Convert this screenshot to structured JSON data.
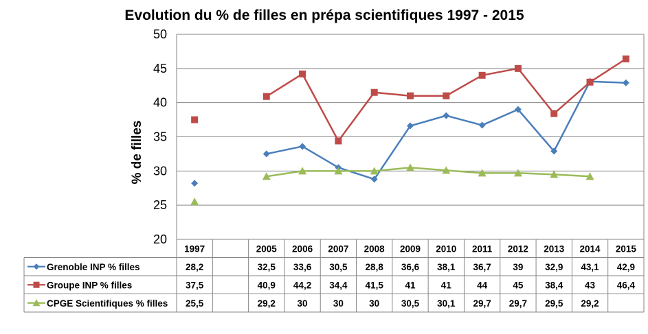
{
  "chart_data": {
    "type": "line",
    "title": "Evolution du % de filles en prépa scientifiques 1997 - 2015",
    "ylabel": "% de filles",
    "xlabel": "",
    "ylim": [
      20,
      50
    ],
    "yticks": [
      20,
      25,
      30,
      35,
      40,
      45,
      50
    ],
    "grid": true,
    "legend": "table-rows",
    "categories": [
      "1997",
      "",
      "2005",
      "2006",
      "2007",
      "2008",
      "2009",
      "2010",
      "2011",
      "2012",
      "2013",
      "2014",
      "2015"
    ],
    "series": [
      {
        "name": "Grenoble INP % filles",
        "color": "#4A7EBB",
        "marker": "diamond",
        "values": [
          28.2,
          null,
          32.5,
          33.6,
          30.5,
          28.8,
          36.6,
          38.1,
          36.7,
          39,
          32.9,
          43.1,
          42.9
        ],
        "labels": [
          "28,2",
          "",
          "32,5",
          "33,6",
          "30,5",
          "28,8",
          "36,6",
          "38,1",
          "36,7",
          "39",
          "32,9",
          "43,1",
          "42,9"
        ]
      },
      {
        "name": "Groupe INP % filles",
        "color": "#BE4B48",
        "marker": "square",
        "values": [
          37.5,
          null,
          40.9,
          44.2,
          34.4,
          41.5,
          41,
          41,
          44,
          45,
          38.4,
          43,
          46.4
        ],
        "labels": [
          "37,5",
          "",
          "40,9",
          "44,2",
          "34,4",
          "41,5",
          "41",
          "41",
          "44",
          "45",
          "38,4",
          "43",
          "46,4"
        ]
      },
      {
        "name": "CPGE Scientifiques % filles",
        "color": "#9BBB59",
        "marker": "triangle",
        "values": [
          25.5,
          null,
          29.2,
          30,
          30,
          30,
          30.5,
          30.1,
          29.7,
          29.7,
          29.5,
          29.2,
          null
        ],
        "labels": [
          "25,5",
          "",
          "29,2",
          "30",
          "30",
          "30",
          "30,5",
          "30,1",
          "29,7",
          "29,7",
          "29,5",
          "29,2",
          ""
        ]
      }
    ]
  }
}
